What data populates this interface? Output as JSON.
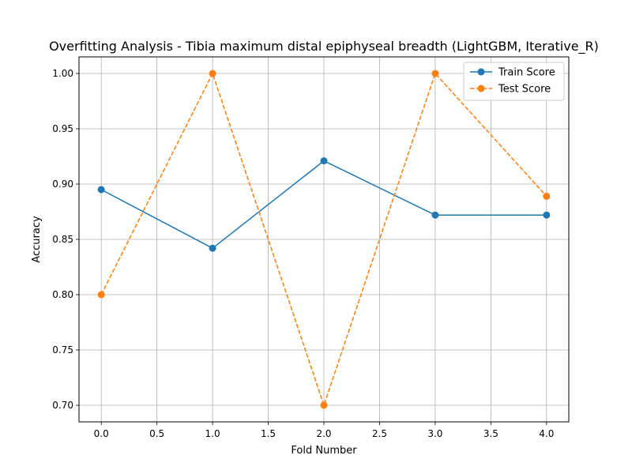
{
  "chart_data": {
    "type": "line",
    "title": "Overfitting Analysis - Tibia maximum distal epiphyseal breadth (LightGBM, Iterative_R)",
    "xlabel": "Fold Number",
    "ylabel": "Accuracy",
    "x": [
      0,
      1,
      2,
      3,
      4
    ],
    "xlim": [
      -0.2,
      4.2
    ],
    "ylim": [
      0.685,
      1.015
    ],
    "xticks": [
      0.0,
      0.5,
      1.0,
      1.5,
      2.0,
      2.5,
      3.0,
      3.5,
      4.0
    ],
    "xtick_labels": [
      "0.0",
      "0.5",
      "1.0",
      "1.5",
      "2.0",
      "2.5",
      "3.0",
      "3.5",
      "4.0"
    ],
    "yticks": [
      0.7,
      0.75,
      0.8,
      0.85,
      0.9,
      0.95,
      1.0
    ],
    "ytick_labels": [
      "0.70",
      "0.75",
      "0.80",
      "0.85",
      "0.90",
      "0.95",
      "1.00"
    ],
    "grid": true,
    "legend_position": "top-right",
    "series": [
      {
        "name": "Train Score",
        "values": [
          0.895,
          0.842,
          0.921,
          0.872,
          0.872
        ],
        "color": "#1f77b4",
        "linestyle": "solid",
        "marker": "circle"
      },
      {
        "name": "Test Score",
        "values": [
          0.8,
          1.0,
          0.7,
          1.0,
          0.889
        ],
        "color": "#ff7f0e",
        "linestyle": "dashed",
        "marker": "circle"
      }
    ]
  }
}
